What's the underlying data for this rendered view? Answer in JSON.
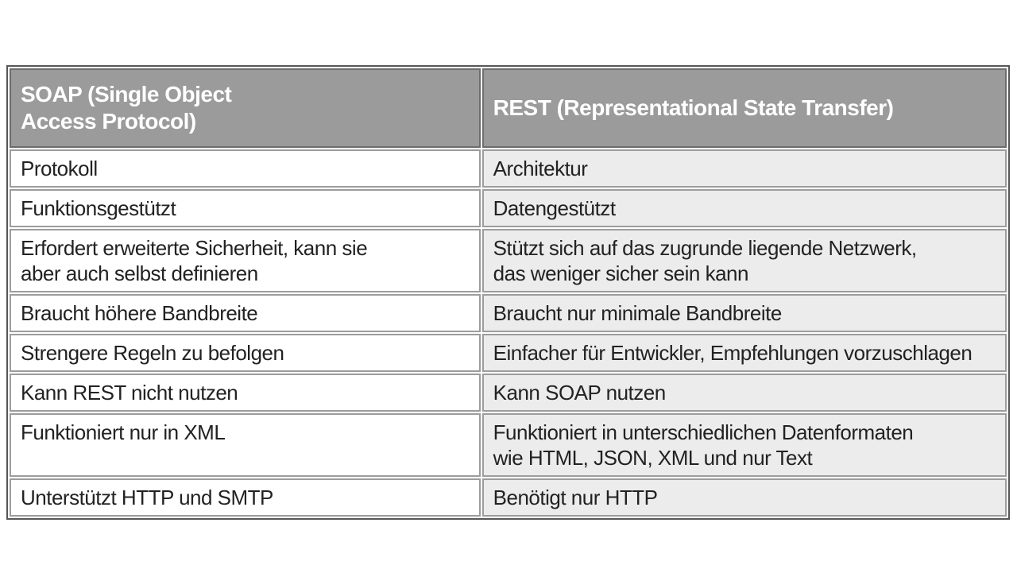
{
  "chart_data": {
    "type": "table",
    "columns": [
      "SOAP (Single Object\nAccess Protocol)",
      "REST (Representational State Transfer)"
    ],
    "rows": [
      [
        "Protokoll",
        "Architektur"
      ],
      [
        "Funktionsgestützt",
        "Datengestützt"
      ],
      [
        "Erfordert erweiterte Sicherheit, kann sie\naber auch selbst definieren",
        "Stützt sich auf das zugrunde liegende Netzwerk,\ndas weniger sicher sein kann"
      ],
      [
        "Braucht höhere Bandbreite",
        "Braucht nur minimale Bandbreite"
      ],
      [
        "Strengere Regeln zu befolgen",
        "Einfacher für Entwickler, Empfehlungen vorzuschlagen"
      ],
      [
        "Kann REST nicht nutzen",
        "Kann SOAP nutzen"
      ],
      [
        "Funktioniert nur in XML",
        "Funktioniert in unterschiedlichen Datenformaten\nwie HTML, JSON, XML und nur Text"
      ],
      [
        "Unterstützt HTTP und SMTP",
        "Benötigt nur HTTP"
      ]
    ]
  },
  "colors": {
    "header_bg": "#9b9b9b",
    "header_text": "#ffffff",
    "rest_column_bg": "#ececec",
    "soap_column_bg": "#ffffff",
    "body_text": "#222222",
    "outer_border": "#575757",
    "cell_border": "#9c9c9c"
  }
}
